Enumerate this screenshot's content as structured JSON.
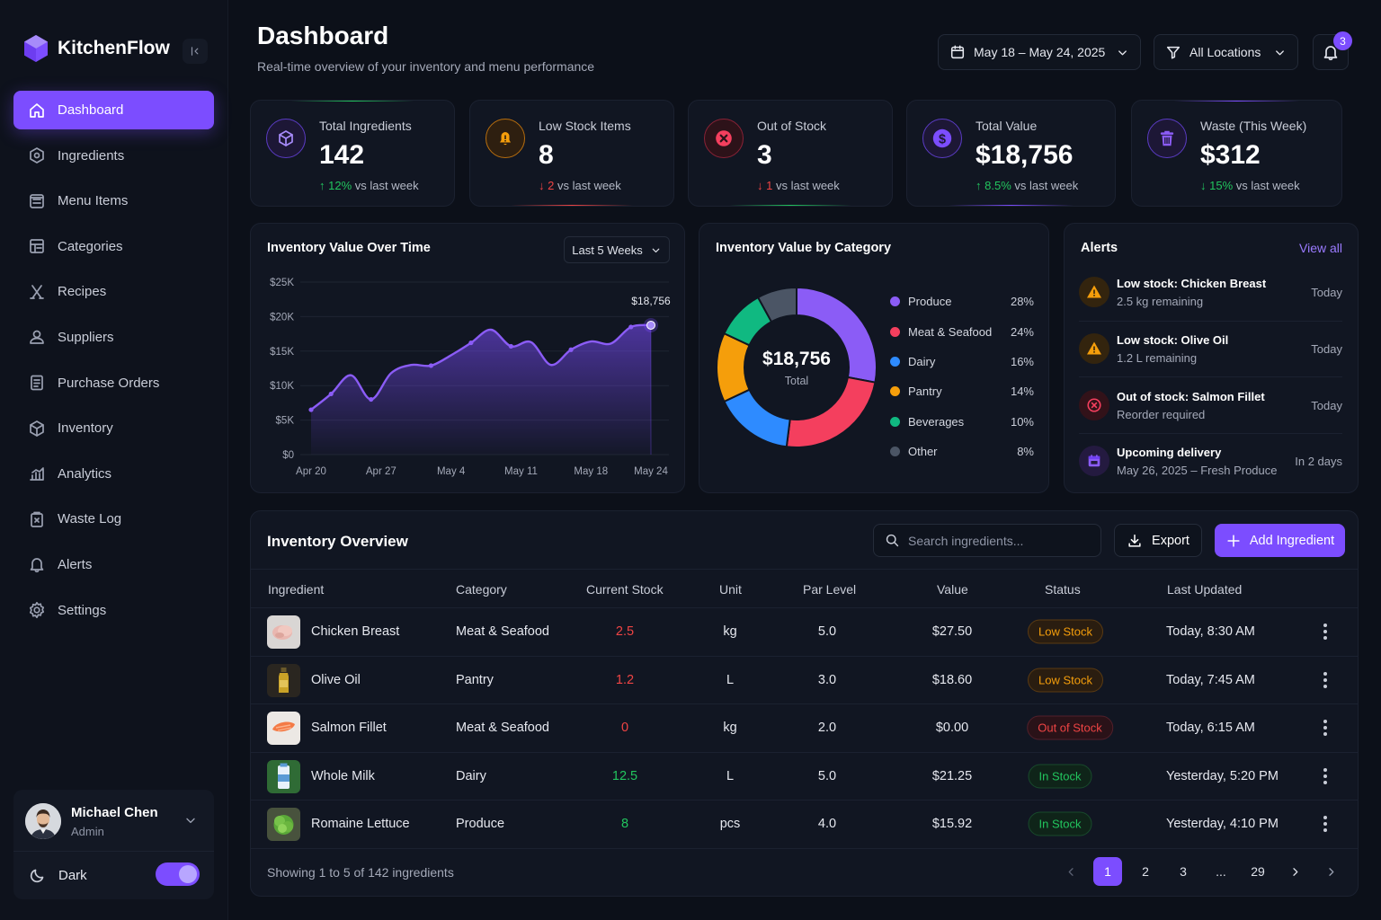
{
  "brand": {
    "name": "KitchenFlow"
  },
  "sidebar": {
    "items": [
      {
        "label": "Dashboard",
        "icon": "home-icon",
        "active": true
      },
      {
        "label": "Ingredients",
        "icon": "ingredients-icon"
      },
      {
        "label": "Menu Items",
        "icon": "menu-items-icon"
      },
      {
        "label": "Categories",
        "icon": "categories-icon"
      },
      {
        "label": "Recipes",
        "icon": "recipes-icon"
      },
      {
        "label": "Suppliers",
        "icon": "suppliers-icon"
      },
      {
        "label": "Purchase Orders",
        "icon": "purchase-orders-icon"
      },
      {
        "label": "Inventory",
        "icon": "inventory-icon"
      },
      {
        "label": "Analytics",
        "icon": "analytics-icon"
      },
      {
        "label": "Waste Log",
        "icon": "waste-log-icon"
      },
      {
        "label": "Alerts",
        "icon": "bell-icon"
      },
      {
        "label": "Settings",
        "icon": "gear-icon"
      }
    ],
    "user": {
      "name": "Michael Chen",
      "role": "Admin"
    },
    "theme": {
      "label": "Dark",
      "enabled": true
    }
  },
  "header": {
    "title": "Dashboard",
    "subtitle": "Real-time overview of your inventory and menu performance",
    "date_range": "May 18 – May 24, 2025",
    "location": "All Locations",
    "notification_count": "3"
  },
  "stats": [
    {
      "label": "Total Ingredients",
      "value": "142",
      "change": "12%",
      "direction": "up",
      "suffix": "vs last week",
      "color": "#7c4dff",
      "icon": "cube-icon"
    },
    {
      "label": "Low Stock Items",
      "value": "8",
      "change": "2",
      "direction": "down",
      "suffix": "vs last week",
      "color": "#f59e0b",
      "icon": "warning-bell-icon"
    },
    {
      "label": "Out of Stock",
      "value": "3",
      "change": "1",
      "direction": "down",
      "suffix": "vs last week",
      "color": "#f43f5e",
      "icon": "x-circle-icon"
    },
    {
      "label": "Total Value",
      "value": "$18,756",
      "change": "8.5%",
      "direction": "up",
      "suffix": "vs last week",
      "color": "#7c4dff",
      "icon": "dollar-icon"
    },
    {
      "label": "Waste (This Week)",
      "value": "$312",
      "change": "15%",
      "direction": "down-good",
      "suffix": "vs last week",
      "color": "#7c4dff",
      "icon": "trash-icon"
    }
  ],
  "line_chart": {
    "title": "Inventory Value Over Time",
    "range_label": "Last 5 Weeks",
    "peak_label": "$18,756"
  },
  "donut_chart": {
    "title": "Inventory Value by Category",
    "center_value": "$18,756",
    "center_label": "Total"
  },
  "chart_data": [
    {
      "type": "area",
      "title": "Inventory Value Over Time",
      "x_ticks": [
        "Apr 20",
        "Apr 27",
        "May 4",
        "May 11",
        "May 18",
        "May 24"
      ],
      "y_ticks": [
        "$0",
        "$5K",
        "$10K",
        "$15K",
        "$20K",
        "$25K"
      ],
      "ylim": [
        0,
        25000
      ],
      "grid": true,
      "x": [
        "Apr 20",
        "Apr 22",
        "Apr 24",
        "Apr 26",
        "Apr 28",
        "Apr 30",
        "May 2",
        "May 4",
        "May 6",
        "May 8",
        "May 10",
        "May 12",
        "May 14",
        "May 16",
        "May 18",
        "May 20",
        "May 22",
        "May 24"
      ],
      "values": [
        6500,
        8800,
        11500,
        8000,
        11800,
        13000,
        12900,
        14400,
        16200,
        18100,
        15700,
        16300,
        13000,
        15200,
        16400,
        16100,
        18500,
        18756
      ],
      "markers": [
        0,
        1,
        3,
        6,
        8,
        10,
        13,
        16
      ]
    },
    {
      "type": "pie",
      "title": "Inventory Value by Category",
      "labels": [
        "Produce",
        "Meat & Seafood",
        "Dairy",
        "Pantry",
        "Beverages",
        "Other"
      ],
      "values": [
        28,
        24,
        16,
        14,
        10,
        8
      ],
      "colors": [
        "#8b5cf6",
        "#f43f5e",
        "#2e8bff",
        "#f59e0b",
        "#10b981",
        "#4b5565"
      ],
      "legend": "right"
    }
  ],
  "alerts": {
    "title": "Alerts",
    "view_all": "View all",
    "items": [
      {
        "title": "Low stock: Chicken Breast",
        "sub": "2.5 kg remaining",
        "when": "Today",
        "kind": "warning"
      },
      {
        "title": "Low stock: Olive Oil",
        "sub": "1.2 L remaining",
        "when": "Today",
        "kind": "warning"
      },
      {
        "title": "Out of stock: Salmon Fillet",
        "sub": "Reorder required",
        "when": "Today",
        "kind": "error"
      },
      {
        "title": "Upcoming delivery",
        "sub": "May 26, 2025 – Fresh Produce",
        "when": "In 2 days",
        "kind": "calendar"
      }
    ]
  },
  "inventory": {
    "title": "Inventory Overview",
    "search_placeholder": "Search ingredients...",
    "export_label": "Export",
    "add_label": "Add Ingredient",
    "columns": [
      "Ingredient",
      "Category",
      "Current Stock",
      "Unit",
      "Par Level",
      "Value",
      "Status",
      "Last Updated"
    ],
    "rows": [
      {
        "name": "Chicken Breast",
        "category": "Meat & Seafood",
        "stock": "2.5",
        "unit": "kg",
        "par": "5.0",
        "value": "$27.50",
        "status": "Low Stock",
        "status_kind": "low",
        "updated": "Today, 8:30 AM",
        "thumb": "chicken"
      },
      {
        "name": "Olive Oil",
        "category": "Pantry",
        "stock": "1.2",
        "unit": "L",
        "par": "3.0",
        "value": "$18.60",
        "status": "Low Stock",
        "status_kind": "low",
        "updated": "Today, 7:45 AM",
        "thumb": "oil"
      },
      {
        "name": "Salmon Fillet",
        "category": "Meat & Seafood",
        "stock": "0",
        "unit": "kg",
        "par": "2.0",
        "value": "$0.00",
        "status": "Out of Stock",
        "status_kind": "out",
        "updated": "Today, 6:15 AM",
        "thumb": "salmon"
      },
      {
        "name": "Whole Milk",
        "category": "Dairy",
        "stock": "12.5",
        "unit": "L",
        "par": "5.0",
        "value": "$21.25",
        "status": "In Stock",
        "status_kind": "in",
        "updated": "Yesterday, 5:20 PM",
        "thumb": "milk"
      },
      {
        "name": "Romaine Lettuce",
        "category": "Produce",
        "stock": "8",
        "unit": "pcs",
        "par": "4.0",
        "value": "$15.92",
        "status": "In Stock",
        "status_kind": "in",
        "updated": "Yesterday, 4:10 PM",
        "thumb": "lettuce"
      }
    ],
    "footer": "Showing 1 to 5 of 142 ingredients",
    "pages": [
      "1",
      "2",
      "3",
      "...",
      "29"
    ],
    "current_page": "1"
  }
}
